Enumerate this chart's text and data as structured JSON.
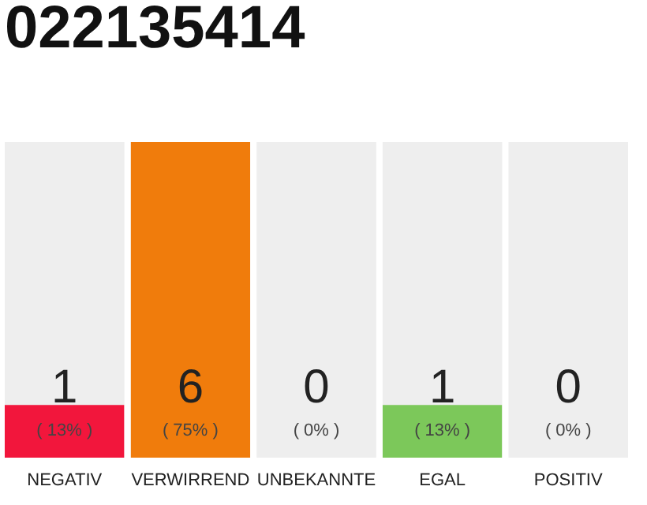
{
  "chart_data": {
    "type": "bar",
    "title": "022135414",
    "categories": [
      "NEGATIV",
      "VERWIRREND",
      "UNBEKANNTE",
      "EGAL",
      "POSITIV"
    ],
    "values": [
      1,
      6,
      0,
      1,
      0
    ],
    "colors": [
      "#f2163c",
      "#f07c0c",
      "#cccccc",
      "#7cc85a",
      "#cccccc"
    ],
    "value_labels": [
      "1",
      "6",
      "0",
      "1",
      "0"
    ],
    "annotations": [
      "( 13% )",
      "( 75% )",
      "( 0% )",
      "( 13% )",
      "( 0% )"
    ],
    "bands": [
      {
        "axis": "y",
        "from": 0,
        "to": 6,
        "color": "#eeeeee"
      }
    ],
    "grid": false
  }
}
